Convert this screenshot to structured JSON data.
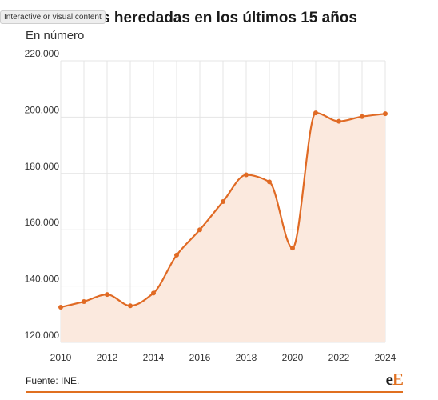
{
  "header": {
    "title": "Sociedades heredadas en los últimos 15 años",
    "subtitle": "En número",
    "overlay_label": "Interactive or visual content"
  },
  "footer": {
    "source": "Fuente: INE.",
    "logo_part1": "e",
    "logo_part2": "E"
  },
  "colors": {
    "line": "#e06a24",
    "area": "#fbe9de",
    "grid": "#e4e4e4",
    "accent": "#e07020"
  },
  "chart_data": {
    "type": "area",
    "title": "Sociedades heredadas en los últimos 15 años",
    "subtitle": "En número",
    "x": [
      2010,
      2011,
      2012,
      2013,
      2014,
      2015,
      2016,
      2017,
      2018,
      2019,
      2020,
      2021,
      2022,
      2023,
      2024
    ],
    "values": [
      132500,
      134500,
      137000,
      133000,
      137500,
      151000,
      160000,
      170000,
      179500,
      177000,
      153500,
      201500,
      198500,
      200200,
      201200
    ],
    "xticks": [
      "2010",
      "2012",
      "2014",
      "2016",
      "2018",
      "2020",
      "2022",
      "2024"
    ],
    "yticks": [
      "120.000",
      "140.000",
      "160.000",
      "180.000",
      "200.000",
      "220.000"
    ],
    "ylim": [
      120000,
      220000
    ],
    "xlim": [
      2010,
      2024
    ],
    "grid": true,
    "legend": "none"
  }
}
